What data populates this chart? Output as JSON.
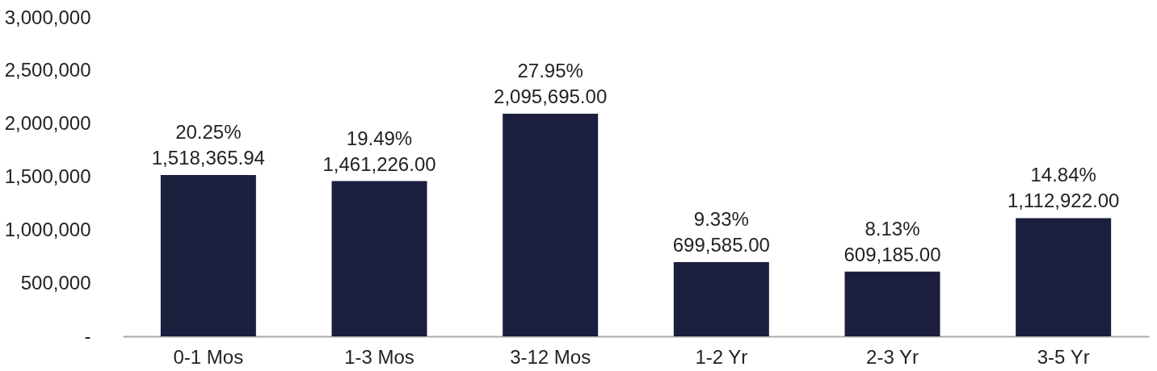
{
  "chart_data": {
    "type": "bar",
    "categories": [
      "0-1 Mos",
      "1-3 Mos",
      "3-12 Mos",
      "1-2 Yr",
      "2-3 Yr",
      "3-5 Yr"
    ],
    "values": [
      1518365.94,
      1461226.0,
      2095695.0,
      699585.0,
      609185.0,
      1112922.0
    ],
    "value_labels": [
      "20.25%\n1,518,365.94",
      "19.49%\n1,461,226.00",
      "27.95%\n2,095,695.00",
      "9.33%\n699,585.00",
      "8.13%\n609,185.00",
      "14.84%\n1,112,922.00"
    ],
    "color": "#1b1e3d",
    "ylim": [
      0,
      3000000
    ],
    "yticks": [
      {
        "value": 0,
        "label": "-"
      },
      {
        "value": 500000,
        "label": "500,000"
      },
      {
        "value": 1000000,
        "label": "1,000,000"
      },
      {
        "value": 1500000,
        "label": "1,500,000"
      },
      {
        "value": 2000000,
        "label": "2,000,000"
      },
      {
        "value": 2500000,
        "label": "2,500,000"
      },
      {
        "value": 3000000,
        "label": "3,000,000"
      }
    ],
    "grid": false
  }
}
